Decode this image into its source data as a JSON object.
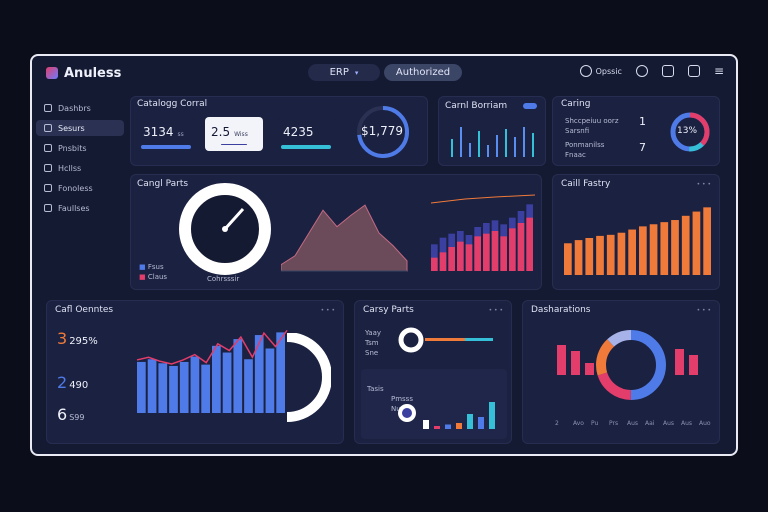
{
  "app": {
    "title": "Anuless",
    "erp_label": "ERP",
    "status_label": "Authorized",
    "user_label": "Opssic"
  },
  "colors": {
    "blue": "#4f7be8",
    "red": "#e23d6b",
    "orange": "#f07a3a",
    "cyan": "#35c0d8",
    "navy": "#3b3fa0",
    "white": "#ffffff"
  },
  "sidebar": {
    "items": [
      {
        "label": "Dashbrs",
        "icon": "dashboard-icon"
      },
      {
        "label": "Sesurs",
        "icon": "sales-icon"
      },
      {
        "label": "Pnsbits",
        "icon": "products-icon"
      },
      {
        "label": "Hcllss",
        "icon": "help-icon"
      },
      {
        "label": "Fonoless",
        "icon": "finance-icon"
      },
      {
        "label": "Faullses",
        "icon": "files-icon"
      }
    ]
  },
  "kpi": {
    "title": "Catalogg Corral",
    "cards": [
      {
        "value": "3134",
        "sub": "ss"
      },
      {
        "value": "2.5",
        "sub": "Wiss"
      },
      {
        "value": "4235",
        "sub": ""
      }
    ],
    "gauge_value": "$1,779"
  },
  "cash_panel": {
    "title": "Carnl Borriam"
  },
  "catalog_panel": {
    "title": "Caring",
    "rows": [
      "Shccpeiuu oorz",
      "Sarsnfi",
      "Ponmanilss",
      "Fnaac"
    ],
    "numbers": [
      "1",
      "7"
    ],
    "ring_value": "13%"
  },
  "gauge_panel": {
    "title": "Cangl Parts",
    "legend": [
      "Fsus",
      "Claus"
    ],
    "gauge_caption": "Cohrsssir"
  },
  "fiscal_panel": {
    "title": "Caill Fastry",
    "chart_data": {
      "type": "bar",
      "values": [
        30,
        33,
        35,
        37,
        38,
        40,
        43,
        46,
        48,
        50,
        52,
        56,
        60,
        64
      ]
    }
  },
  "combo_chart": {
    "chart_data": {
      "type": "bar",
      "series": [
        {
          "values": [
            20,
            25,
            28,
            30,
            27,
            33,
            36,
            38,
            35,
            40,
            45,
            50
          ]
        },
        {
          "values": [
            10,
            14,
            18,
            22,
            20,
            26,
            28,
            30,
            26,
            32,
            36,
            40
          ]
        }
      ]
    }
  },
  "area_chart": {
    "chart_data": {
      "type": "area",
      "values": [
        5,
        12,
        30,
        48,
        35,
        44,
        52,
        30,
        20,
        8
      ]
    }
  },
  "overview": {
    "title": "Cafl Oenntes",
    "stats": [
      {
        "value": "3",
        "label": "295%"
      },
      {
        "value": "2",
        "label": "490"
      },
      {
        "value": "6",
        "label": "S99"
      }
    ],
    "chart_data": {
      "type": "bar",
      "values": [
        38,
        40,
        37,
        35,
        38,
        42,
        36,
        50,
        45,
        55,
        40,
        58,
        48,
        60
      ]
    }
  },
  "middle_panel": {
    "title": "Carsy Parts",
    "rows": [
      "Yaay",
      "Tsm",
      "Sne"
    ],
    "legend": [
      "Tasis",
      "Pmsss",
      "Nuoeo"
    ],
    "chart_data": {
      "type": "bar",
      "values": [
        6,
        2,
        3,
        4,
        10,
        8,
        18
      ]
    }
  },
  "donut_panel": {
    "title": "Dasharations",
    "chart_data": {
      "type": "pie",
      "values": [
        50,
        20,
        18,
        12
      ]
    },
    "bars": [
      30,
      24,
      12,
      26,
      20
    ],
    "ticks": [
      "2",
      "Avo",
      "Pu",
      "Prs",
      "Aus",
      "Aai",
      "Aus",
      "Aus",
      "Auo"
    ]
  }
}
